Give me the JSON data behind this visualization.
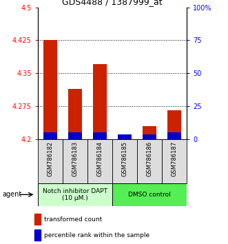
{
  "title": "GDS4488 / 1387999_at",
  "samples": [
    "GSM786182",
    "GSM786183",
    "GSM786184",
    "GSM786185",
    "GSM786186",
    "GSM786187"
  ],
  "red_values": [
    4.425,
    4.315,
    4.37,
    4.205,
    4.23,
    4.265
  ],
  "blue_values": [
    4.215,
    4.215,
    4.215,
    4.21,
    4.21,
    4.215
  ],
  "y_min": 4.2,
  "y_max": 4.5,
  "y_ticks": [
    4.2,
    4.275,
    4.35,
    4.425,
    4.5
  ],
  "y_right_ticks": [
    0,
    25,
    50,
    75,
    100
  ],
  "y_right_labels": [
    "0",
    "25",
    "50",
    "75",
    "100%"
  ],
  "group1_label": "Notch inhibitor DAPT\n(10 μM.)",
  "group2_label": "DMSO control",
  "group1_color": "#ccffcc",
  "group2_color": "#55ee55",
  "agent_label": "agent",
  "legend_red": "transformed count",
  "legend_blue": "percentile rank within the sample",
  "bar_width": 0.55,
  "red_color": "#cc2200",
  "blue_color": "#0000cc",
  "grid_color": "black",
  "title_fontsize": 9,
  "tick_fontsize": 7,
  "sample_fontsize": 6,
  "legend_fontsize": 6.5,
  "agent_fontsize": 7,
  "group_fontsize": 6.5
}
